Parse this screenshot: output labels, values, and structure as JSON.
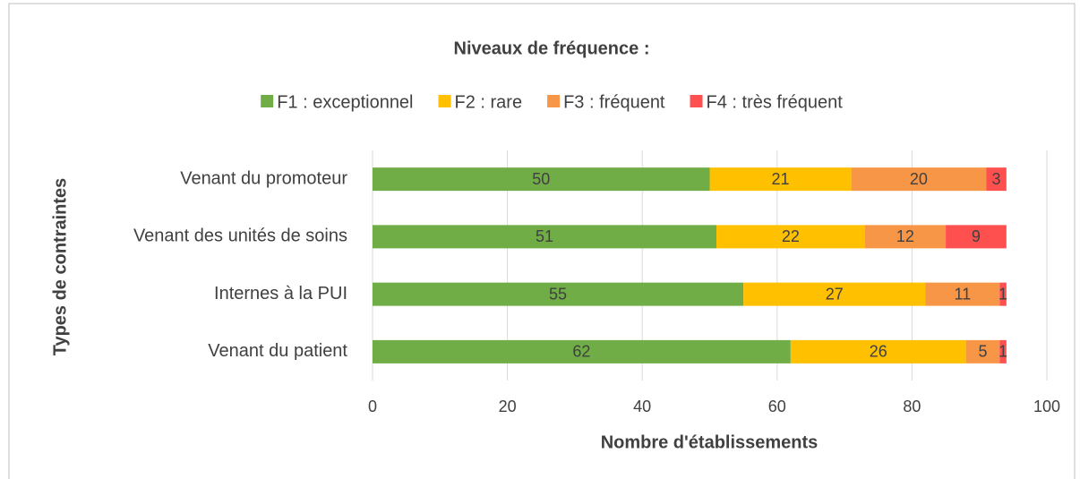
{
  "chart_data": {
    "type": "stacked_bar_horizontal",
    "legend_title": "Niveaux de fréquence :",
    "legend_position": "top",
    "xlabel": "Nombre d'établissements",
    "ylabel": "Types de contraintes",
    "categories": [
      "Venant du promoteur",
      "Venant des unités de soins",
      "Internes à la PUI",
      "Venant du patient"
    ],
    "series": [
      {
        "name": "F1 : exceptionnel",
        "color": "#70ad47",
        "values": [
          50,
          51,
          55,
          62
        ]
      },
      {
        "name": "F2 : rare",
        "color": "#ffc000",
        "values": [
          21,
          22,
          27,
          26
        ]
      },
      {
        "name": "F3 : fréquent",
        "color": "#f79646",
        "values": [
          20,
          12,
          11,
          5
        ]
      },
      {
        "name": "F4 : très fréquent",
        "color": "#ff5050",
        "values": [
          3,
          9,
          1,
          1
        ]
      }
    ],
    "xlim": [
      0,
      100
    ],
    "xticks": [
      0,
      20,
      40,
      60,
      80,
      100
    ],
    "grid": true
  }
}
